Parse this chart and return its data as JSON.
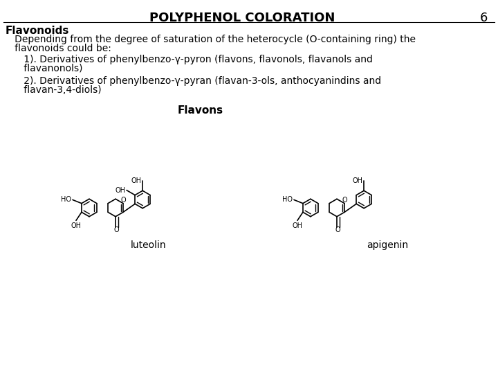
{
  "title": "POLYPHENOL COLORATION",
  "slide_number": "6",
  "bg_color": "#ffffff",
  "title_fontsize": 13,
  "title_bold": true,
  "slide_num_fontsize": 13,
  "heading": "Flavonoids",
  "heading_fontsize": 11,
  "heading_bold": true,
  "body_fontsize": 10,
  "section_title": "Flavons",
  "section_title_fontsize": 11,
  "section_title_bold": true,
  "compound1_name": "luteolin",
  "compound2_name": "apigenin",
  "compound_fontsize": 10,
  "font_family": "Arial"
}
